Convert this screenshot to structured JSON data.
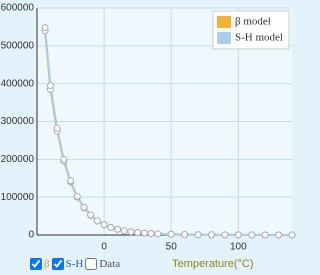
{
  "chart_data": {
    "type": "line",
    "x": [
      -44,
      -40,
      -35,
      -30,
      -25,
      -20,
      -15,
      -10,
      -5,
      0,
      5,
      10,
      15,
      20,
      25,
      30,
      35,
      40,
      50,
      60,
      70,
      80,
      90,
      100,
      110,
      120,
      130,
      140
    ],
    "series": [
      {
        "name": "β model",
        "color": "#f2b233",
        "values": [
          540000,
          385000,
          275000,
          195000,
          140000,
          100000,
          72000,
          52000,
          37000,
          27000,
          20000,
          15000,
          11000,
          8500,
          6500,
          5000,
          4000,
          3100,
          1900,
          1200,
          800,
          550,
          380,
          270,
          200,
          150,
          110,
          85
        ]
      },
      {
        "name": "S-H model",
        "color": "#aacdee",
        "values": [
          548000,
          395000,
          282000,
          200000,
          143000,
          102000,
          73000,
          53000,
          37500,
          27300,
          20200,
          15100,
          11100,
          8550,
          6500,
          5000,
          4000,
          3100,
          1900,
          1200,
          800,
          550,
          380,
          270,
          200,
          150,
          110,
          85
        ]
      }
    ],
    "xlim": [
      -50,
      140
    ],
    "xticks": [
      0,
      50,
      100
    ],
    "ylim": [
      0,
      600000
    ],
    "yticks": [
      0,
      100000,
      200000,
      300000,
      400000,
      500000,
      600000
    ],
    "grid": true,
    "legend": "top-right",
    "x_label": "Temperature(°C)"
  },
  "controls": {
    "checkboxes": [
      {
        "label": "β",
        "checked": true,
        "color": "#e0a030"
      },
      {
        "label": "S-H",
        "checked": true,
        "color": "#2f5f9f"
      },
      {
        "label": "Data",
        "checked": false,
        "color": "#555555"
      }
    ]
  }
}
